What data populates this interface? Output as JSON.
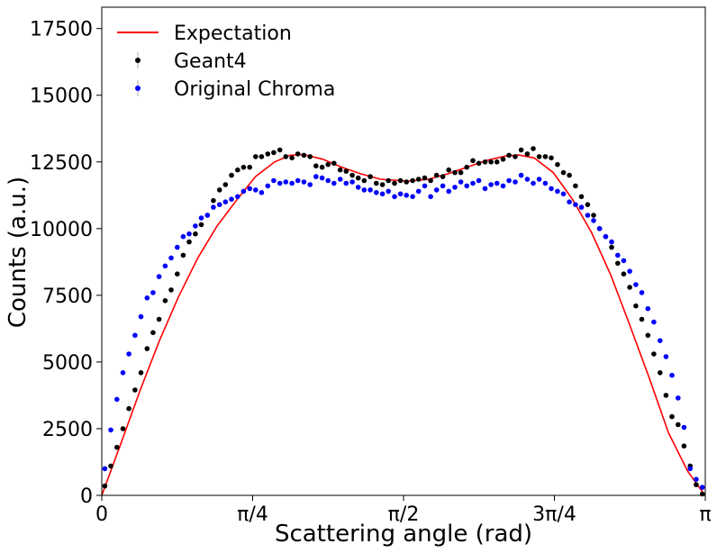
{
  "chart_data": {
    "type": "scatter",
    "title": "",
    "xlabel": "Scattering angle (rad)",
    "ylabel": "Counts (a.u.)",
    "xlim": [
      0,
      3.14159
    ],
    "ylim": [
      0,
      18300
    ],
    "grid": false,
    "legend_position": "top-left",
    "x_ticks": [
      {
        "value": 0,
        "label": "0"
      },
      {
        "value": 0.785398,
        "label": "π/4"
      },
      {
        "value": 1.570796,
        "label": "π/2"
      },
      {
        "value": 2.356194,
        "label": "3π/4"
      },
      {
        "value": 3.141593,
        "label": "π"
      }
    ],
    "y_ticks": [
      {
        "value": 0,
        "label": "0"
      },
      {
        "value": 2500,
        "label": "2500"
      },
      {
        "value": 5000,
        "label": "5000"
      },
      {
        "value": 7500,
        "label": "7500"
      },
      {
        "value": 10000,
        "label": "10000"
      },
      {
        "value": 12500,
        "label": "12500"
      },
      {
        "value": 15000,
        "label": "15000"
      },
      {
        "value": 17500,
        "label": "17500"
      }
    ],
    "series": [
      {
        "name": "Expectation",
        "kind": "line",
        "color": "#ff0000",
        "x": [
          0,
          0.1,
          0.2,
          0.3,
          0.4,
          0.5,
          0.6,
          0.7,
          0.8,
          0.9,
          0.98,
          1.05,
          1.15,
          1.25,
          1.35,
          1.45,
          1.55,
          1.6,
          1.7,
          1.8,
          1.9,
          2.0,
          2.1,
          2.17,
          2.25,
          2.35,
          2.45,
          2.55,
          2.65,
          2.75,
          2.85,
          2.95,
          3.05,
          3.14
        ],
        "y": [
          0,
          1950,
          3950,
          5800,
          7450,
          8900,
          10100,
          11050,
          11950,
          12500,
          12750,
          12780,
          12600,
          12300,
          12050,
          11850,
          11800,
          11780,
          11850,
          12050,
          12300,
          12550,
          12720,
          12760,
          12650,
          12100,
          11100,
          9850,
          8250,
          6350,
          4400,
          2350,
          900,
          0
        ]
      },
      {
        "name": "Geant4",
        "kind": "points",
        "color": "#000000",
        "x": [
          0.016,
          0.047,
          0.079,
          0.11,
          0.141,
          0.173,
          0.204,
          0.236,
          0.267,
          0.298,
          0.33,
          0.361,
          0.393,
          0.424,
          0.455,
          0.487,
          0.518,
          0.55,
          0.581,
          0.613,
          0.644,
          0.675,
          0.707,
          0.738,
          0.77,
          0.801,
          0.832,
          0.864,
          0.895,
          0.927,
          0.958,
          0.99,
          1.021,
          1.052,
          1.084,
          1.115,
          1.147,
          1.178,
          1.209,
          1.241,
          1.272,
          1.304,
          1.335,
          1.366,
          1.398,
          1.429,
          1.461,
          1.492,
          1.524,
          1.555,
          1.586,
          1.618,
          1.649,
          1.681,
          1.712,
          1.743,
          1.775,
          1.806,
          1.838,
          1.869,
          1.9,
          1.932,
          1.963,
          1.995,
          2.026,
          2.057,
          2.089,
          2.12,
          2.152,
          2.183,
          2.215,
          2.246,
          2.277,
          2.309,
          2.34,
          2.372,
          2.403,
          2.434,
          2.466,
          2.497,
          2.529,
          2.56,
          2.591,
          2.623,
          2.654,
          2.686,
          2.717,
          2.748,
          2.78,
          2.811,
          2.843,
          2.874,
          2.906,
          2.937,
          2.968,
          3.0,
          3.031,
          3.063,
          3.094,
          3.126
        ],
        "y": [
          350,
          1100,
          1800,
          2500,
          3250,
          3950,
          4600,
          5500,
          6100,
          6600,
          7300,
          7700,
          8300,
          9000,
          9500,
          9800,
          10150,
          10500,
          11050,
          11450,
          11650,
          12000,
          12200,
          12300,
          12300,
          12700,
          12700,
          12800,
          12850,
          12950,
          12700,
          12650,
          12800,
          12750,
          12700,
          12350,
          12300,
          12400,
          12450,
          12200,
          12150,
          12000,
          11900,
          11800,
          11950,
          11700,
          11650,
          11800,
          11700,
          11800,
          11750,
          11800,
          11850,
          11900,
          11800,
          12000,
          11950,
          12200,
          12100,
          12100,
          12300,
          12550,
          12450,
          12500,
          12500,
          12500,
          12600,
          12750,
          12700,
          12950,
          12800,
          13000,
          12700,
          12700,
          12650,
          12400,
          12100,
          12000,
          11600,
          11200,
          10900,
          10500,
          10000,
          9700,
          9300,
          8700,
          8300,
          7800,
          7100,
          6600,
          6000,
          5300,
          4600,
          3750,
          2950,
          2650,
          1850,
          1100,
          400,
          50
        ]
      },
      {
        "name": "Original Chroma",
        "kind": "points",
        "color": "#0000ff",
        "x": [
          0.016,
          0.047,
          0.079,
          0.11,
          0.141,
          0.173,
          0.204,
          0.236,
          0.267,
          0.298,
          0.33,
          0.361,
          0.393,
          0.424,
          0.455,
          0.487,
          0.518,
          0.55,
          0.581,
          0.613,
          0.644,
          0.675,
          0.707,
          0.738,
          0.77,
          0.801,
          0.832,
          0.864,
          0.895,
          0.927,
          0.958,
          0.99,
          1.021,
          1.052,
          1.084,
          1.115,
          1.147,
          1.178,
          1.209,
          1.241,
          1.272,
          1.304,
          1.335,
          1.366,
          1.398,
          1.429,
          1.461,
          1.492,
          1.524,
          1.555,
          1.586,
          1.618,
          1.649,
          1.681,
          1.712,
          1.743,
          1.775,
          1.806,
          1.838,
          1.869,
          1.9,
          1.932,
          1.963,
          1.995,
          2.026,
          2.057,
          2.089,
          2.12,
          2.152,
          2.183,
          2.215,
          2.246,
          2.277,
          2.309,
          2.34,
          2.372,
          2.403,
          2.434,
          2.466,
          2.497,
          2.529,
          2.56,
          2.591,
          2.623,
          2.654,
          2.686,
          2.717,
          2.748,
          2.78,
          2.811,
          2.843,
          2.874,
          2.906,
          2.937,
          2.968,
          3.0,
          3.031,
          3.063,
          3.094,
          3.126
        ],
        "y": [
          1000,
          2450,
          3600,
          4600,
          5300,
          6000,
          6700,
          7400,
          7600,
          8200,
          8600,
          8900,
          9300,
          9700,
          9800,
          10100,
          10400,
          10500,
          10800,
          10900,
          11000,
          11100,
          11200,
          11400,
          11500,
          11450,
          11350,
          11600,
          11800,
          11700,
          11750,
          11700,
          11800,
          11750,
          11650,
          11950,
          11900,
          11800,
          11700,
          11850,
          11700,
          11750,
          11550,
          11450,
          11450,
          11350,
          11300,
          11400,
          11200,
          11300,
          11250,
          11200,
          11400,
          11600,
          11200,
          11450,
          11600,
          11400,
          11550,
          11750,
          11600,
          11700,
          11800,
          11500,
          11650,
          11700,
          11600,
          11800,
          11750,
          12000,
          11850,
          11700,
          11850,
          11700,
          11500,
          11400,
          11300,
          11000,
          10900,
          10800,
          10500,
          10300,
          10000,
          9700,
          9500,
          9000,
          8800,
          8400,
          7900,
          7600,
          7000,
          6500,
          5800,
          5200,
          4500,
          3650,
          2550,
          1000,
          600,
          300
        ]
      }
    ]
  }
}
